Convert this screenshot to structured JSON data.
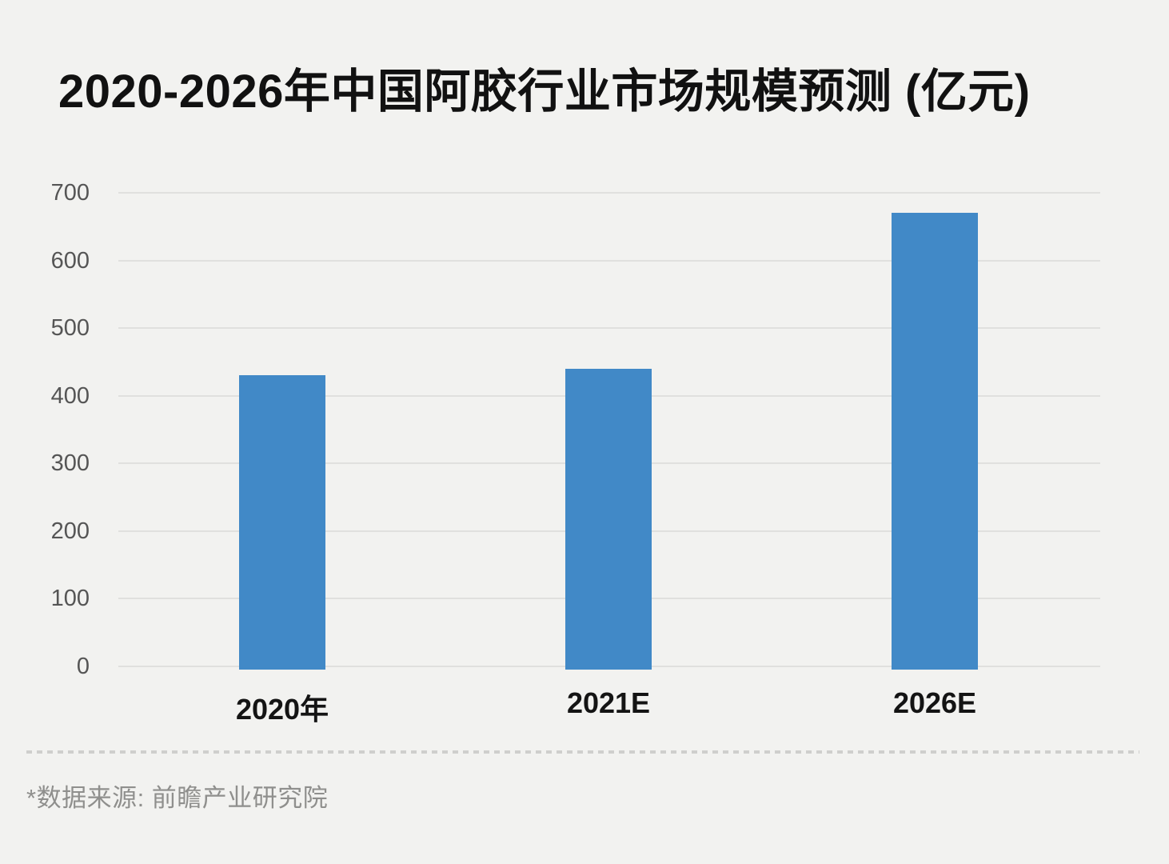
{
  "chart_data": {
    "type": "bar",
    "title": "2020-2026年中国阿胶行业市场规模预测 (亿元)",
    "categories": [
      "2020年",
      "2021E",
      "2026E"
    ],
    "values": [
      430,
      440,
      670
    ],
    "xlabel": "",
    "ylabel": "",
    "ylim": [
      0,
      700
    ],
    "yticks": [
      0,
      100,
      200,
      300,
      400,
      500,
      600,
      700
    ],
    "grid": true,
    "legend": false,
    "bar_color": "#4189c7"
  },
  "footer": {
    "source_note": "*数据来源: 前瞻产业研究院"
  },
  "colors": {
    "background": "#f2f2f0",
    "bar": "#4189c7",
    "gridline": "#e0e0de",
    "ytick_text": "#555555",
    "xtick_text": "#141414",
    "title_text": "#111111",
    "source_text": "#8f8f8d",
    "divider": "#cfcfcd"
  }
}
